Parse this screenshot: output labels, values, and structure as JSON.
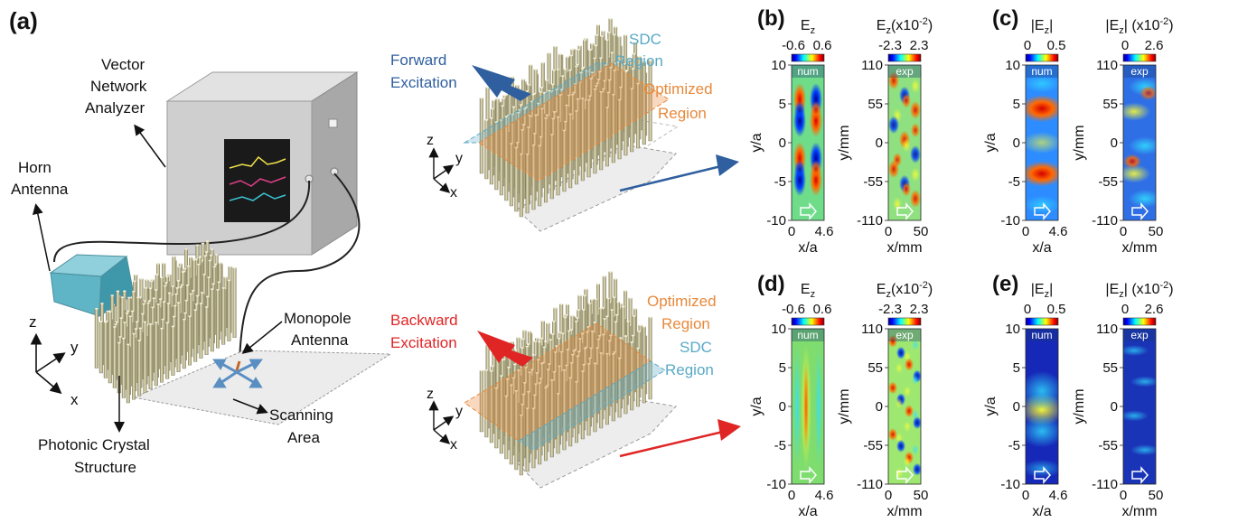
{
  "panels": {
    "a": "(a)",
    "b": "(b)",
    "c": "(c)",
    "d": "(d)",
    "e": "(e)"
  },
  "setup": {
    "vna_line1": "Vector",
    "vna_line2": "Network",
    "vna_line3": "Analyzer",
    "horn_line1": "Horn",
    "horn_line2": "Antenna",
    "mono_line1": "Monopole",
    "mono_line2": "Antenna",
    "pc_line1": "Photonic Crystal",
    "pc_line2": "Structure",
    "scan_line1": "Scanning",
    "scan_line2": "Area",
    "axis_z": "z",
    "axis_y": "y",
    "axis_x": "x"
  },
  "forward": {
    "excitation_line1": "Forward",
    "excitation_line2": "Excitation",
    "sdc_line1": "SDC",
    "sdc_line2": "Region",
    "opt_line1": "Optimized",
    "opt_line2": "Region",
    "axis_z": "z",
    "axis_y": "y",
    "axis_x": "x"
  },
  "backward": {
    "excitation_line1": "Backward",
    "excitation_line2": "Excitation",
    "sdc_line1": "SDC",
    "sdc_line2": "Region",
    "opt_line1": "Optimized",
    "opt_line2": "Region",
    "axis_z": "z",
    "axis_y": "y",
    "axis_x": "x"
  },
  "maps": {
    "b_num": {
      "title": "E",
      "sub": "z",
      "unit": "",
      "cmin": "-0.6",
      "cmax": "0.6",
      "tag": "num",
      "yticks": [
        "10",
        "5",
        "0",
        "-5",
        "-10"
      ],
      "xticks": [
        "0",
        "4.6"
      ],
      "xlabel": "x/a",
      "ylabel": "y/a"
    },
    "b_exp": {
      "title": "E",
      "sub": "z",
      "unit": "(x10",
      "exp": "-2",
      "unit_end": ")",
      "cmin": "-2.3",
      "cmax": "2.3",
      "tag": "exp",
      "yticks": [
        "110",
        "55",
        "0",
        "-55",
        "-110"
      ],
      "xticks": [
        "0",
        "50"
      ],
      "xlabel": "x/mm",
      "ylabel": "y/mm"
    },
    "c_num": {
      "title": "|E",
      "sub": "z",
      "unit": "|",
      "cmin": "0",
      "cmax": "0.5",
      "tag": "num",
      "yticks": [
        "10",
        "5",
        "0",
        "-5",
        "-10"
      ],
      "xticks": [
        "0",
        "4.6"
      ],
      "xlabel": "x/a",
      "ylabel": "y/a"
    },
    "c_exp": {
      "title": "|E",
      "sub": "z",
      "unit": "| (x10",
      "exp": "-2",
      "unit_end": ")",
      "cmin": "0",
      "cmax": "2.6",
      "tag": "exp",
      "yticks": [
        "110",
        "55",
        "0",
        "-55",
        "-110"
      ],
      "xticks": [
        "0",
        "50"
      ],
      "xlabel": "x/mm",
      "ylabel": "y/mm"
    },
    "d_num": {
      "title": "E",
      "sub": "z",
      "unit": "",
      "cmin": "-0.6",
      "cmax": "0.6",
      "tag": "num",
      "yticks": [
        "10",
        "5",
        "0",
        "-5",
        "-10"
      ],
      "xticks": [
        "0",
        "4.6"
      ],
      "xlabel": "x/a",
      "ylabel": "y/a"
    },
    "d_exp": {
      "title": "E",
      "sub": "z",
      "unit": "(x10",
      "exp": "-2",
      "unit_end": ")",
      "cmin": "-2.3",
      "cmax": "2.3",
      "tag": "exp",
      "yticks": [
        "110",
        "55",
        "0",
        "-55",
        "-110"
      ],
      "xticks": [
        "0",
        "50"
      ],
      "xlabel": "x/mm",
      "ylabel": "y/mm"
    },
    "e_num": {
      "title": "|E",
      "sub": "z",
      "unit": "|",
      "cmin": "0",
      "cmax": "0.5",
      "tag": "num",
      "yticks": [
        "10",
        "5",
        "0",
        "-5",
        "-10"
      ],
      "xticks": [
        "0",
        "4.6"
      ],
      "xlabel": "x/a",
      "ylabel": "y/a"
    },
    "e_exp": {
      "title": "|E",
      "sub": "z",
      "unit": "| (x10",
      "exp": "-2",
      "unit_end": ")",
      "cmin": "0",
      "cmax": "2.6",
      "tag": "exp",
      "yticks": [
        "110",
        "55",
        "0",
        "-55",
        "-110"
      ],
      "xticks": [
        "0",
        "50"
      ],
      "xlabel": "x/mm",
      "ylabel": "y/mm"
    }
  },
  "colors": {
    "forward_arrow": "#2f5f9e",
    "backward_arrow": "#e02525",
    "optimized": "#e8893b",
    "sdc": "#58a9c6",
    "rod": "#cfc9a3"
  }
}
